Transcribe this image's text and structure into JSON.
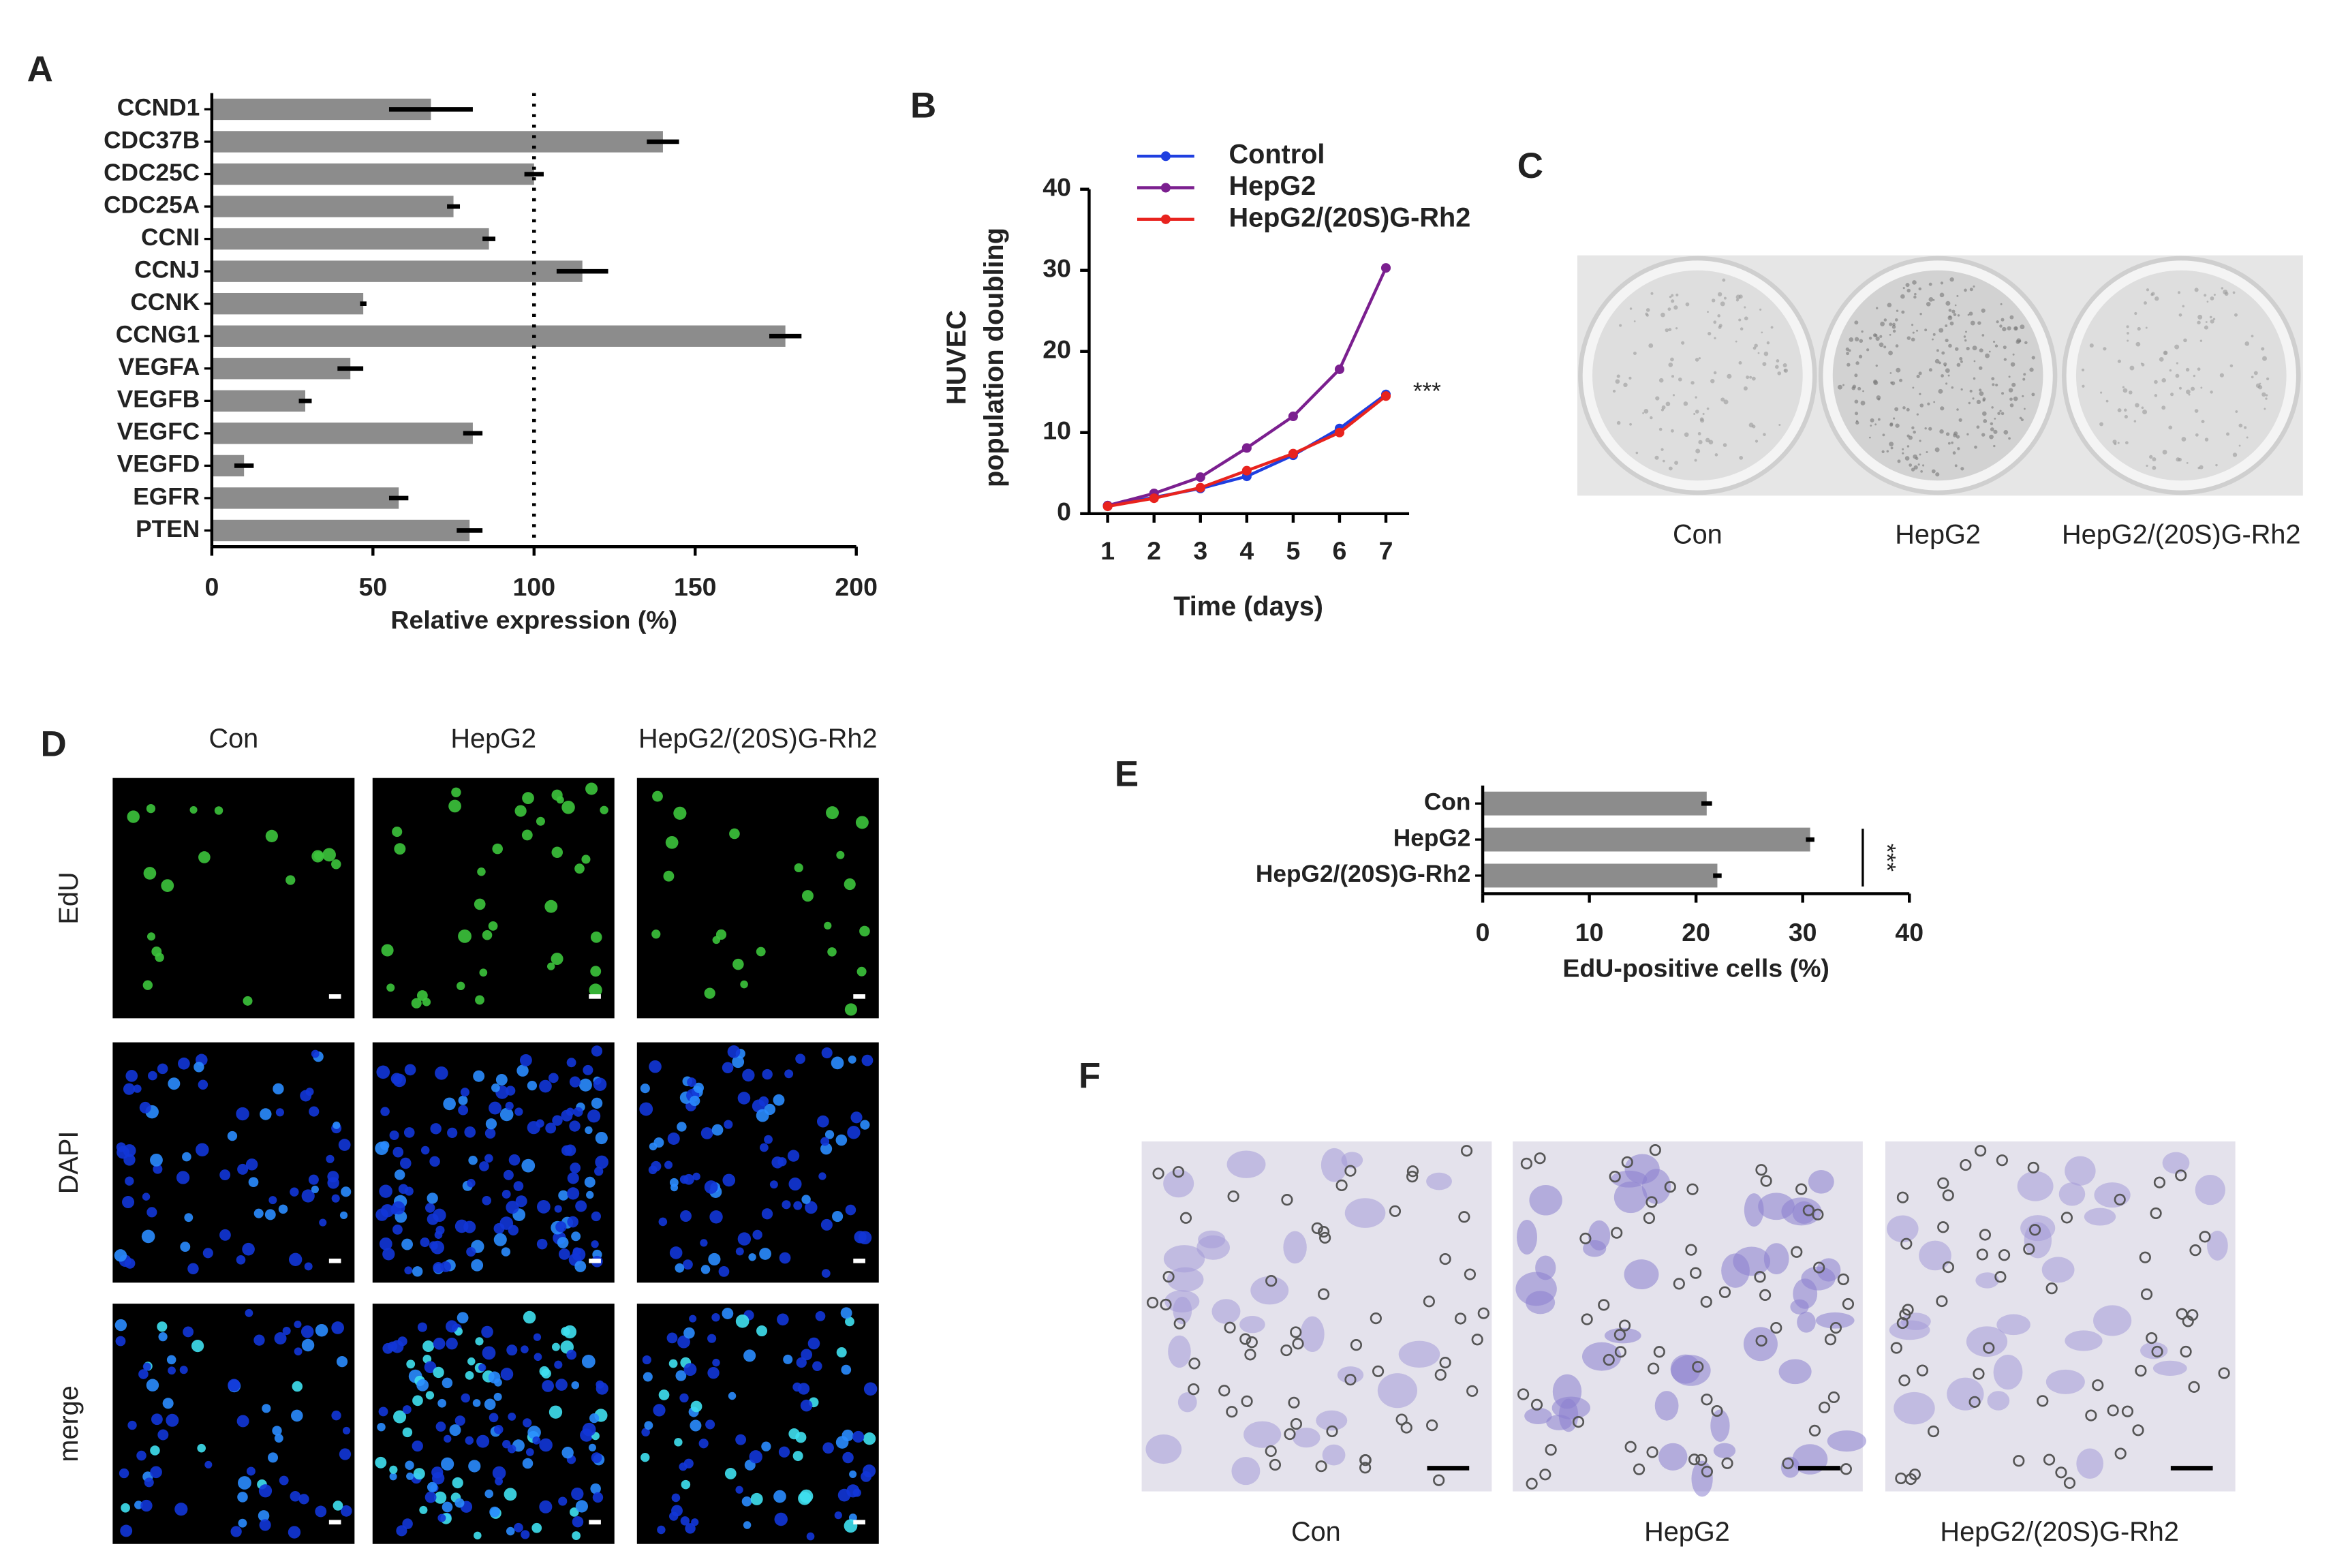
{
  "chart_data": [
    {
      "panel": "A",
      "type": "bar",
      "horizontal": true,
      "categories": [
        "CCND1",
        "CDC37B",
        "CDC25C",
        "CDC25A",
        "CCNI",
        "CCNJ",
        "CCNK",
        "CCNG1",
        "VEGFA",
        "VEGFB",
        "VEGFC",
        "VEGFD",
        "EGFR",
        "PTEN"
      ],
      "values": [
        68,
        140,
        100,
        75,
        86,
        115,
        47,
        178,
        43,
        29,
        81,
        10,
        58,
        80
      ],
      "errors": [
        13,
        5,
        3,
        2,
        2,
        8,
        1,
        5,
        4,
        2,
        3,
        3,
        3,
        4
      ],
      "color": "#8c8c8c",
      "error_color": "#000000",
      "xlim": [
        0,
        200
      ],
      "xticks": [
        0,
        50,
        100,
        150,
        200
      ],
      "xlabel": "Relative expression (%)",
      "reference_line": 100
    },
    {
      "panel": "B",
      "type": "line",
      "x": [
        1,
        2,
        3,
        4,
        5,
        6,
        7
      ],
      "series": [
        {
          "name": "Control",
          "color": "#1f3fe0",
          "values": [
            1,
            2,
            3.1,
            4.6,
            7.2,
            10.5,
            14.7
          ]
        },
        {
          "name": "HepG2",
          "color": "#7b1f8f",
          "values": [
            1,
            2.5,
            4.5,
            8.1,
            12,
            17.8,
            30.3
          ]
        },
        {
          "name": "HepG2/(20S)G-Rh2",
          "color": "#e8231e",
          "values": [
            0.9,
            1.9,
            3.2,
            5.3,
            7.4,
            10,
            14.5
          ]
        }
      ],
      "xlim": [
        0.6,
        7.5
      ],
      "xticks": [
        1,
        2,
        3,
        4,
        5,
        6,
        7
      ],
      "ylim": [
        0,
        40
      ],
      "yticks": [
        0,
        10,
        20,
        30,
        40
      ],
      "xlabel": "Time (days)",
      "ylabel": [
        "HUVEC",
        "population doubling"
      ],
      "annotation": "***",
      "legend": "upper left"
    },
    {
      "panel": "E",
      "type": "bar",
      "horizontal": true,
      "categories": [
        "Con",
        "HepG2",
        "HepG2/(20S)G-Rh2"
      ],
      "values": [
        21,
        30.7,
        22
      ],
      "errors": [
        0.5,
        0.4,
        0.4
      ],
      "color": "#8c8c8c",
      "error_color": "#000000",
      "xlim": [
        0,
        40
      ],
      "xticks": [
        0,
        10,
        20,
        30,
        40
      ],
      "xlabel": "EdU-positive cells (%)",
      "annotation": "***"
    }
  ],
  "image_panels": [
    {
      "panel": "C",
      "labels": [
        "Con",
        "HepG2",
        "HepG2/(20S)G-Rh2"
      ]
    },
    {
      "panel": "D",
      "columns": [
        "Con",
        "HepG2",
        "HepG2/(20S)G-Rh2"
      ],
      "rows": [
        "EdU",
        "DAPI",
        "merge"
      ]
    },
    {
      "panel": "F",
      "labels": [
        "Con",
        "HepG2",
        "HepG2/(20S)G-Rh2"
      ]
    }
  ]
}
